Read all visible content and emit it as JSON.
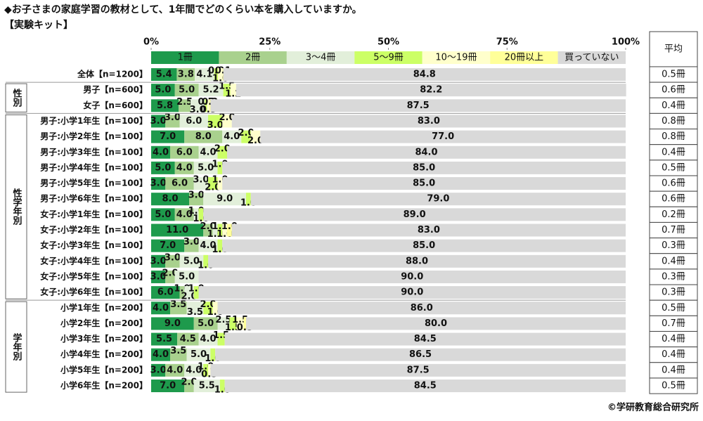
{
  "chart_data": {
    "type": "stacked-bar-horizontal",
    "title": "◆お子さまの家庭学習の教材として、1年間でどのくらい本を購入していますか。",
    "subtitle": "【実験キット】",
    "categories": [
      "全体【n=1200】",
      "男子【n=600】",
      "女子【n=600】",
      "男子:小学1年生【n=100】",
      "男子:小学2年生【n=100】",
      "男子:小学3年生【n=100】",
      "男子:小学4年生【n=100】",
      "男子:小学5年生【n=100】",
      "男子:小学6年生【n=100】",
      "女子:小学1年生【n=100】",
      "女子:小学2年生【n=100】",
      "女子:小学3年生【n=100】",
      "女子:小学4年生【n=100】",
      "女子:小学5年生【n=100】",
      "女子:小学6年生【n=100】",
      "小学1年生【n=200】",
      "小学2年生【n=200】",
      "小学3年生【n=200】",
      "小学4年生【n=200】",
      "小学5年生【n=200】",
      "小学6年生【n=200】"
    ],
    "groups": [
      "性別",
      "性学年別",
      "学年別"
    ],
    "series": [
      {
        "name": "1冊",
        "color": "#1e9a4c",
        "values": [
          5.4,
          5.0,
          5.8,
          3.0,
          7.0,
          4.0,
          5.0,
          3.0,
          8.0,
          5.0,
          11.0,
          7.0,
          3.0,
          3.0,
          6.0,
          4.0,
          9.0,
          5.5,
          4.0,
          3.0,
          7.0
        ],
        "value_labels": [
          "5.4",
          "5.0",
          "5.8",
          "3.0",
          "7.0",
          "4.0",
          "5.0",
          "3.0",
          "8.0",
          "5.0",
          "11.0",
          "7.0",
          "3.0",
          "3.0",
          "6.0",
          "4.0",
          "9.0",
          "5.5",
          "4.0",
          "3.0",
          "7.0"
        ]
      },
      {
        "name": "2冊",
        "color": "#a9d18e",
        "values": [
          3.8,
          5.0,
          2.5,
          3.0,
          8.0,
          6.0,
          4.0,
          6.0,
          3.0,
          4.0,
          2.0,
          3.0,
          3.0,
          2.0,
          1.0,
          3.5,
          5.0,
          4.5,
          3.5,
          4.0,
          2.0
        ],
        "value_labels": [
          "3.8",
          "5.0",
          "2.5",
          "3.0",
          "8.0",
          "6.0",
          "4.0",
          "6.0",
          "3.0",
          "4.0",
          "2.0",
          "3.0",
          "3.0",
          "2.0",
          "1.0",
          "3.5",
          "5.0",
          "4.5",
          "3.5",
          "4.0",
          "2.0"
        ]
      },
      {
        "name": "3～4冊",
        "color": "#e2efda",
        "values": [
          4.1,
          5.2,
          3.0,
          6.0,
          4.0,
          4.0,
          5.0,
          3.0,
          9.0,
          1.0,
          1.0,
          4.0,
          5.0,
          5.0,
          2.0,
          3.5,
          2.5,
          4.0,
          5.0,
          4.0,
          5.5
        ],
        "value_labels": [
          "4.1",
          "5.2",
          "3.0",
          "6.0",
          "4.0",
          "4.0",
          "5.0",
          "3.0",
          "9.0",
          "1.0",
          "1.0",
          "4.0",
          "5.0",
          "5.0",
          "2.0",
          "3.5",
          "2.5",
          "4.0",
          "5.0",
          "4.0",
          "5.5"
        ]
      },
      {
        "name": "5～9冊",
        "color": "#ccff66",
        "values": [
          0.8,
          1.5,
          0.5,
          3.0,
          2.0,
          2.0,
          1.0,
          2.0,
          1.0,
          1.0,
          1.0,
          1.0,
          1.0,
          null,
          1.0,
          2.0,
          1.5,
          1.5,
          1.0,
          1.0,
          1.0
        ],
        "value_labels": [
          "0.8",
          "1.5",
          "0.5",
          "3.0",
          "2.0",
          "2.0",
          "1.0",
          "2.0",
          "1.0",
          "1.0",
          "1.0",
          "1.0",
          "1.0",
          null,
          "1.0",
          "2.0",
          "1.5",
          "1.5",
          "1.0",
          "1.0",
          "1.0"
        ]
      },
      {
        "name": "10～19冊",
        "color": "#ffffcc",
        "values": [
          1.0,
          1.2,
          0.5,
          2.0,
          2.0,
          null,
          null,
          1.0,
          null,
          null,
          1.0,
          null,
          null,
          null,
          null,
          1.0,
          1.5,
          null,
          null,
          0.5,
          null
        ],
        "value_labels": [
          "1.0",
          "1.2",
          "0.5",
          "2.0",
          "2.0",
          null,
          null,
          "1.0",
          null,
          null,
          "1.0",
          null,
          null,
          null,
          null,
          "1.0",
          "1.5",
          null,
          null,
          "0.5",
          null
        ]
      },
      {
        "name": "20冊以上",
        "color": "#ffff99",
        "values": [
          0.1,
          null,
          0.2,
          null,
          null,
          null,
          null,
          null,
          null,
          null,
          1.0,
          null,
          null,
          null,
          null,
          null,
          0.5,
          null,
          null,
          null,
          null
        ],
        "value_labels": [
          "0.1",
          null,
          "0.2",
          null,
          null,
          null,
          null,
          null,
          null,
          null,
          "1.0",
          null,
          null,
          null,
          null,
          null,
          "0.5",
          null,
          null,
          null,
          null
        ]
      },
      {
        "name": "買っていない",
        "color": "#d9d9d9",
        "values": [
          84.8,
          82.2,
          87.5,
          83.0,
          77.0,
          84.0,
          85.0,
          85.0,
          79.0,
          89.0,
          83.0,
          85.0,
          88.0,
          90.0,
          90.0,
          86.0,
          80.0,
          84.5,
          86.5,
          87.5,
          84.5
        ],
        "value_labels": [
          "84.8",
          "82.2",
          "87.5",
          "83.0",
          "77.0",
          "84.0",
          "85.0",
          "85.0",
          "79.0",
          "89.0",
          "83.0",
          "85.0",
          "88.0",
          "90.0",
          "90.0",
          "86.0",
          "80.0",
          "84.5",
          "86.5",
          "87.5",
          "84.5"
        ]
      }
    ],
    "xlim": [
      0,
      100
    ],
    "xticks": [
      {
        "value": 0,
        "label": "0%"
      },
      {
        "value": 25,
        "label": "25%"
      },
      {
        "value": 50,
        "label": "50%"
      },
      {
        "value": 75,
        "label": "75%"
      },
      {
        "value": 100,
        "label": "100%"
      }
    ],
    "average": {
      "title": "平均",
      "values": [
        0.5,
        0.6,
        0.4,
        0.8,
        0.8,
        0.4,
        0.5,
        0.6,
        0.6,
        0.2,
        0.7,
        0.3,
        0.4,
        0.3,
        0.3,
        0.5,
        0.7,
        0.4,
        0.4,
        0.4,
        0.5
      ],
      "value_labels": [
        "0.5冊",
        "0.6冊",
        "0.4冊",
        "0.8冊",
        "0.8冊",
        "0.4冊",
        "0.5冊",
        "0.6冊",
        "0.6冊",
        "0.2冊",
        "0.7冊",
        "0.3冊",
        "0.4冊",
        "0.3冊",
        "0.3冊",
        "0.5冊",
        "0.7冊",
        "0.4冊",
        "0.4冊",
        "0.4冊",
        "0.5冊"
      ]
    },
    "source": "©学研教育総合研究所"
  }
}
